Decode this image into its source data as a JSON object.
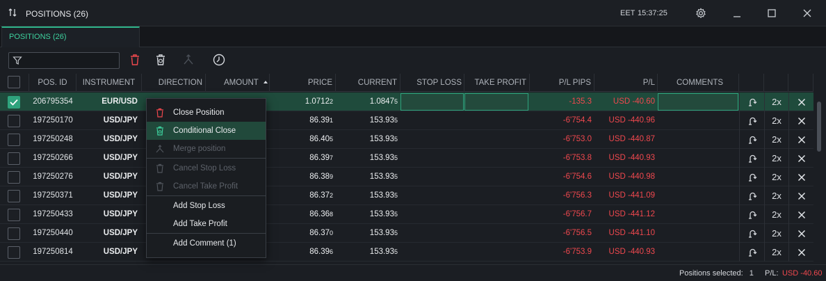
{
  "window": {
    "title": "POSITIONS (26)",
    "timezone": "EET",
    "clock": "15:37:25"
  },
  "tab": {
    "label": "POSITIONS (26)"
  },
  "toolbar": {
    "filter_value": ""
  },
  "columns": {
    "pos_id": "POS. ID",
    "instrument": "INSTRUMENT",
    "direction": "DIRECTION",
    "amount": "AMOUNT",
    "price": "PRICE",
    "current": "CURRENT",
    "stop_loss": "STOP LOSS",
    "take_profit": "TAKE PROFIT",
    "pl_pips": "P/L PIPS",
    "pl": "P/L",
    "comments": "COMMENTS"
  },
  "rows": [
    {
      "id": "206795354",
      "instrument": "EUR/USD",
      "price": "1.0712",
      "price_sup": "2",
      "current": "1.0847",
      "current_sup": "5",
      "pips": "-135.3",
      "pl": "USD -40.60",
      "selected": true,
      "mult": "2x"
    },
    {
      "id": "197250170",
      "instrument": "USD/JPY",
      "price": "86.39",
      "price_sup": "1",
      "current": "153.93",
      "current_sup": "5",
      "pips": "-6'754.4",
      "pl": "USD -440.96",
      "selected": false,
      "mult": "2x"
    },
    {
      "id": "197250248",
      "instrument": "USD/JPY",
      "price": "86.40",
      "price_sup": "5",
      "current": "153.93",
      "current_sup": "5",
      "pips": "-6'753.0",
      "pl": "USD -440.87",
      "selected": false,
      "mult": "2x"
    },
    {
      "id": "197250266",
      "instrument": "USD/JPY",
      "price": "86.39",
      "price_sup": "7",
      "current": "153.93",
      "current_sup": "5",
      "pips": "-6'753.8",
      "pl": "USD -440.93",
      "selected": false,
      "mult": "2x"
    },
    {
      "id": "197250276",
      "instrument": "USD/JPY",
      "price": "86.38",
      "price_sup": "9",
      "current": "153.93",
      "current_sup": "5",
      "pips": "-6'754.6",
      "pl": "USD -440.98",
      "selected": false,
      "mult": "2x"
    },
    {
      "id": "197250371",
      "instrument": "USD/JPY",
      "price": "86.37",
      "price_sup": "2",
      "current": "153.93",
      "current_sup": "5",
      "pips": "-6'756.3",
      "pl": "USD -441.09",
      "selected": false,
      "mult": "2x"
    },
    {
      "id": "197250433",
      "instrument": "USD/JPY",
      "price": "86.36",
      "price_sup": "8",
      "current": "153.93",
      "current_sup": "5",
      "pips": "-6'756.7",
      "pl": "USD -441.12",
      "selected": false,
      "mult": "2x"
    },
    {
      "id": "197250440",
      "instrument": "USD/JPY",
      "price": "86.37",
      "price_sup": "0",
      "current": "153.93",
      "current_sup": "5",
      "pips": "-6'756.5",
      "pl": "USD -441.10",
      "selected": false,
      "mult": "2x"
    },
    {
      "id": "197250814",
      "instrument": "USD/JPY",
      "price": "86.39",
      "price_sup": "6",
      "current": "153.93",
      "current_sup": "5",
      "pips": "-6'753.9",
      "pl": "USD -440.93",
      "selected": false,
      "mult": "2x"
    }
  ],
  "context_menu": {
    "items": [
      {
        "label": "Close Position",
        "icon": "trash-icon",
        "disabled": false,
        "highlight": false
      },
      {
        "label": "Conditional Close",
        "icon": "conditional-trash-icon",
        "disabled": false,
        "highlight": true
      },
      {
        "label": "Merge position",
        "icon": "merge-icon",
        "disabled": true,
        "highlight": false
      },
      {
        "label": "Cancel Stop Loss",
        "icon": "trash-icon",
        "disabled": true,
        "highlight": false
      },
      {
        "label": "Cancel Take Profit",
        "icon": "trash-icon",
        "disabled": true,
        "highlight": false
      },
      {
        "label": "Add Stop Loss",
        "icon": "",
        "disabled": false,
        "highlight": false
      },
      {
        "label": "Add Take Profit",
        "icon": "",
        "disabled": false,
        "highlight": false
      },
      {
        "label": "Add Comment (1)",
        "icon": "",
        "disabled": false,
        "highlight": false
      }
    ]
  },
  "footer": {
    "selected_label": "Positions selected:",
    "selected_count": "1",
    "pl_label": "P/L:",
    "pl_value": "USD -40.60"
  },
  "colors": {
    "accent": "#2fb58a",
    "negative": "#f0484e",
    "selected_row": "#1f4b3c"
  }
}
